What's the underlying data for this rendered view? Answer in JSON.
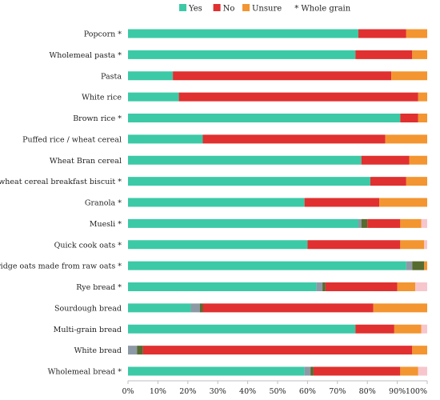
{
  "chart_data": {
    "type": "bar",
    "orientation": "horizontal",
    "stacked": true,
    "categories": [
      "Popcorn *",
      "Wholemeal pasta *",
      "Pasta",
      "White rice",
      "Brown rice *",
      "Puffed rice / wheat cereal",
      "Wheat Bran cereal",
      "Whole wheat cereal breakfast biscuit *",
      "Granola *",
      "Muesli *",
      "Quick cook oats *",
      "Porridge oats made from raw oats *",
      "Rye bread *",
      "Sourdough bread",
      "Multi-grain bread",
      "White bread",
      "Wholemeal bread *"
    ],
    "series": [
      {
        "name": "Yes",
        "color": "#3CC9A6",
        "values": [
          77,
          76,
          15,
          17,
          91,
          25,
          78,
          81,
          59,
          77,
          60,
          93,
          63,
          21,
          76,
          0,
          59
        ]
      },
      {
        "name": "",
        "color": "#8E99A6",
        "values": [
          0,
          0,
          0,
          0,
          0,
          0,
          0,
          0,
          0,
          1,
          0,
          2,
          2,
          3,
          0,
          3,
          2
        ]
      },
      {
        "name": "",
        "color": "#556B2F",
        "values": [
          0,
          0,
          0,
          0,
          0,
          0,
          0,
          0,
          0,
          2,
          0,
          4,
          1,
          1,
          0,
          2,
          1
        ]
      },
      {
        "name": "No",
        "color": "#E0302F",
        "values": [
          16,
          19,
          73,
          80,
          6,
          61,
          16,
          12,
          25,
          11,
          31,
          0,
          24,
          57,
          13,
          90,
          29
        ]
      },
      {
        "name": "Unsure",
        "color": "#F39530",
        "values": [
          7,
          5,
          12,
          3,
          3,
          14,
          6,
          7,
          16,
          7,
          8,
          1,
          6,
          18,
          9,
          5,
          6
        ]
      },
      {
        "name": "",
        "color": "#F7C6CC",
        "values": [
          0,
          0,
          0,
          0,
          0,
          0,
          0,
          0,
          0,
          2,
          1,
          0,
          4,
          0,
          2,
          0,
          3
        ]
      }
    ],
    "legend": {
      "position": "top",
      "entries": [
        {
          "label": "Yes",
          "color": "#3CC9A6"
        },
        {
          "label": "No",
          "color": "#E0302F"
        },
        {
          "label": "Unsure",
          "color": "#F39530"
        }
      ],
      "note": "* Whole grain"
    },
    "x_ticks": [
      "0%",
      "10%",
      "20%",
      "30%",
      "40%",
      "50%",
      "60%",
      "70%",
      "80%",
      "90%",
      "100%"
    ],
    "xlim": [
      0,
      100
    ],
    "grid": false,
    "title": "",
    "xlabel": "",
    "ylabel": ""
  }
}
